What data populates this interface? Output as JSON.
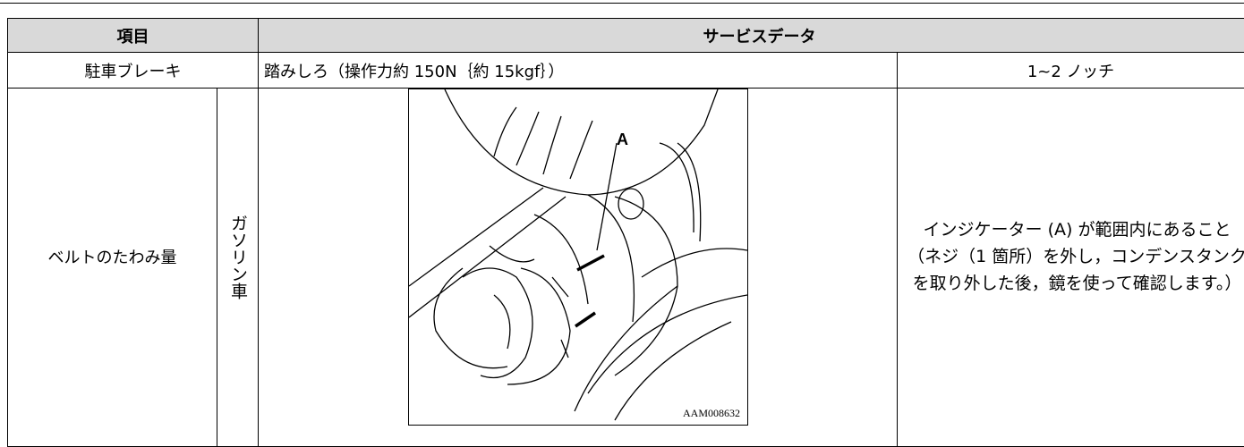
{
  "table": {
    "header": [
      "項目",
      "サービスデータ"
    ],
    "rows": [
      [
        "駐車ブレーキ",
        "踏みしろ（操作力約 150N｛約 15kgf｝）",
        "1~2 ノッチ"
      ],
      [
        "ベルトのたわみ量",
        "ガソリン車",
        {
          "label": "A",
          "code": "AAM008632"
        },
        "インジケーター (A) が範囲内にあること（ネジ（1 箇所）を外し，コンデンスタンクを取り外した後，鏡を使って確認します。）"
      ]
    ]
  }
}
